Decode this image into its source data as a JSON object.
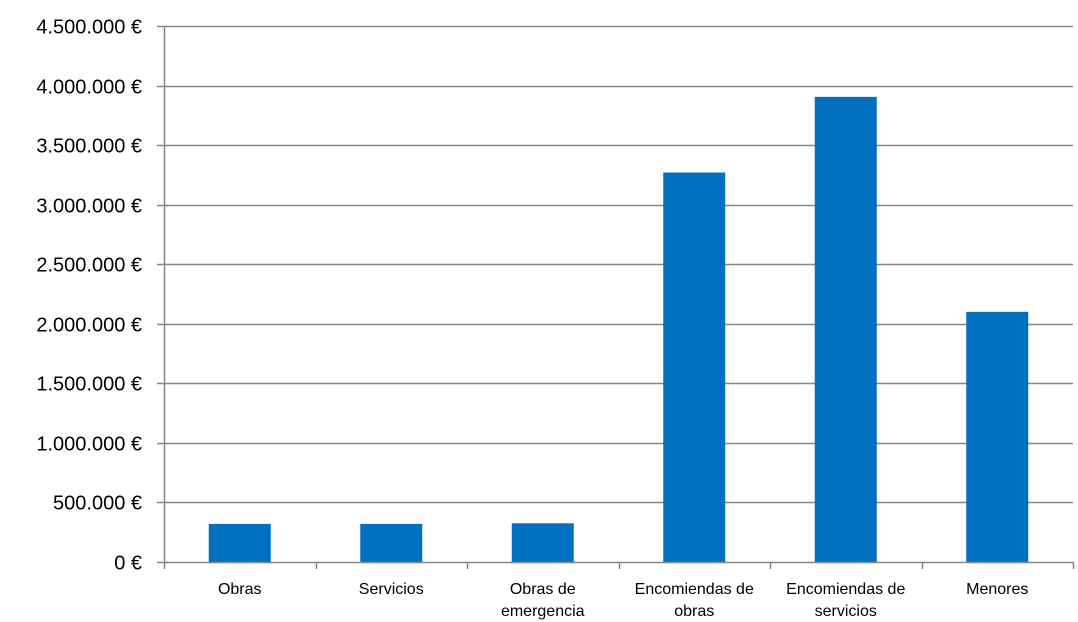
{
  "colors": {
    "bar": "#0070C0",
    "grid": "#868686",
    "axis": "#868686",
    "text": "#000000",
    "background": "#FFFFFF"
  },
  "chart_data": {
    "type": "bar",
    "title": "",
    "xlabel": "",
    "ylabel": "",
    "categories": [
      [
        "Obras"
      ],
      [
        "Servicios"
      ],
      [
        "Obras de",
        "emergencia"
      ],
      [
        "Encomiendas de",
        "obras"
      ],
      [
        "Encomiendas de",
        "servicios"
      ],
      [
        "Menores"
      ]
    ],
    "values": [
      320000,
      320000,
      325000,
      3270000,
      3905000,
      2100000
    ],
    "ylim": [
      0,
      4500000
    ],
    "ytick_values": [
      0,
      500000,
      1000000,
      1500000,
      2000000,
      2500000,
      3000000,
      3500000,
      4000000,
      4500000
    ],
    "ytick_labels": [
      "0 €",
      "500.000 €",
      "1.000.000 €",
      "1.500.000 €",
      "2.000.000 €",
      "2.500.000 €",
      "3.000.000 €",
      "3.500.000 €",
      "4.000.000 €",
      "4.500.000 €"
    ],
    "grid": true,
    "legend": "none"
  }
}
